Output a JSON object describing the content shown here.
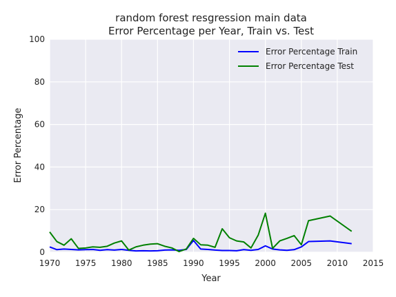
{
  "chart_data": {
    "type": "line",
    "title_line1": "random forest resgression main data",
    "title_line2": "Error Percentage per Year, Train vs. Test",
    "xlabel": "Year",
    "ylabel": "Error Percentage",
    "xlim": [
      1970,
      2015
    ],
    "ylim": [
      0,
      100
    ],
    "x_ticks": [
      1970,
      1975,
      1980,
      1985,
      1990,
      1995,
      2000,
      2005,
      2010,
      2015
    ],
    "y_ticks": [
      0,
      20,
      40,
      60,
      80,
      100
    ],
    "grid": true,
    "legend_position": "top-right",
    "x": [
      1970,
      1971,
      1972,
      1973,
      1974,
      1975,
      1976,
      1977,
      1978,
      1979,
      1980,
      1981,
      1982,
      1983,
      1984,
      1985,
      1986,
      1987,
      1988,
      1989,
      1990,
      1991,
      1992,
      1993,
      1994,
      1995,
      1996,
      1997,
      1998,
      1999,
      2000,
      2001,
      2002,
      2003,
      2004,
      2005,
      2006,
      2009,
      2012
    ],
    "series": [
      {
        "name": "Error Percentage Train",
        "color": "#0000ff",
        "values": [
          2.5,
          1.2,
          1.5,
          1.3,
          1.1,
          1.2,
          1.3,
          0.9,
          1.2,
          1.0,
          1.3,
          0.9,
          0.6,
          0.7,
          0.6,
          0.7,
          1.0,
          1.1,
          0.9,
          1.3,
          5.5,
          1.5,
          1.3,
          1.0,
          0.8,
          0.8,
          0.7,
          1.2,
          0.9,
          1.3,
          3.0,
          1.5,
          1.1,
          0.9,
          1.2,
          2.5,
          5.0,
          5.3,
          4.0
        ]
      },
      {
        "name": "Error Percentage Test",
        "color": "#008000",
        "values": [
          9.5,
          5.0,
          3.3,
          6.3,
          1.8,
          2.0,
          2.5,
          2.3,
          2.8,
          4.3,
          5.3,
          1.0,
          2.5,
          3.3,
          3.8,
          4.0,
          2.8,
          2.0,
          0.3,
          1.5,
          6.5,
          3.5,
          3.3,
          2.3,
          11.0,
          6.8,
          5.3,
          4.8,
          2.0,
          8.0,
          18.3,
          1.8,
          5.3,
          6.5,
          7.8,
          3.5,
          14.8,
          17.0,
          9.8
        ]
      }
    ]
  },
  "colors": {
    "plot_background": "#eaeaf2",
    "grid": "#ffffff"
  }
}
